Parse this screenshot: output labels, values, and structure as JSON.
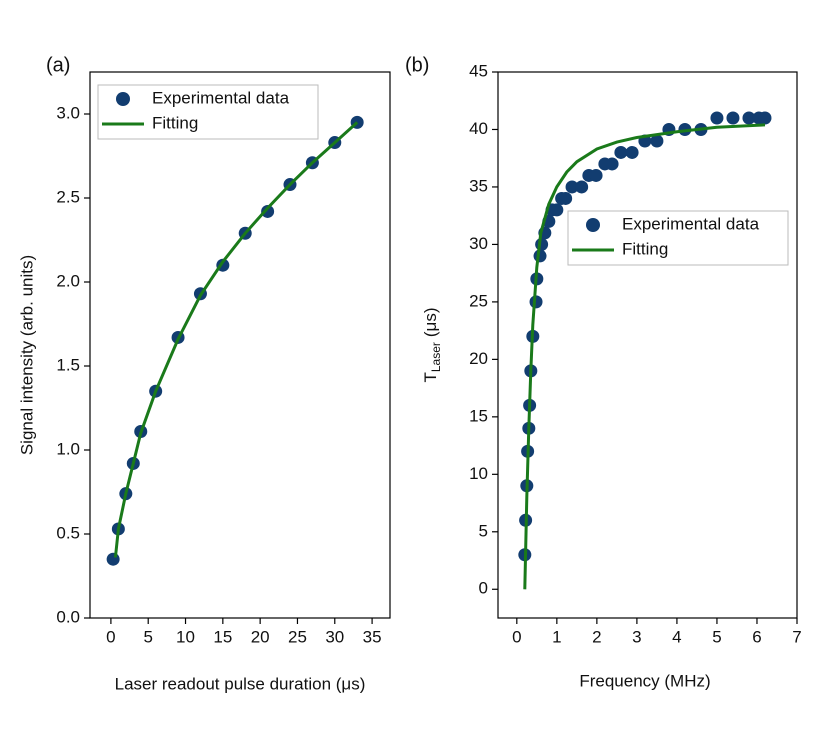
{
  "chart_data": [
    {
      "type": "scatter",
      "panel_label": "(a)",
      "xlabel": "Laser readout pulse duration (μs)",
      "ylabel": "Signal intensity (arb. units)",
      "xlim": [
        -2.8,
        37.4
      ],
      "ylim": [
        0,
        3.25
      ],
      "xticks": [
        0,
        5,
        10,
        15,
        20,
        25,
        30,
        35
      ],
      "yticks": [
        {
          "value": 0,
          "label": "0.0"
        },
        0.5,
        {
          "value": 1,
          "label": "1.0"
        },
        1.5,
        {
          "value": 2,
          "label": "2.0"
        },
        2.5,
        {
          "value": 3,
          "label": "3.0"
        }
      ],
      "legend": "upper left",
      "series": [
        {
          "name": "Experimental data",
          "color": "#123d70",
          "style": "marker",
          "x": [
            0.3,
            1,
            2,
            3,
            4,
            6,
            9,
            12,
            15,
            18,
            21,
            24,
            27,
            30,
            33
          ],
          "values": [
            0.35,
            0.53,
            0.74,
            0.92,
            1.11,
            1.35,
            1.67,
            1.93,
            2.1,
            2.29,
            2.42,
            2.58,
            2.71,
            2.83,
            2.95
          ]
        },
        {
          "name": "Fitting",
          "color": "#1a7a1a",
          "style": "line",
          "x": [
            0.6,
            1,
            2,
            3,
            4,
            6,
            9,
            12,
            15,
            18,
            21,
            24,
            27,
            30,
            33
          ],
          "values": [
            0.36,
            0.53,
            0.74,
            0.92,
            1.1,
            1.35,
            1.66,
            1.92,
            2.12,
            2.29,
            2.44,
            2.58,
            2.71,
            2.83,
            2.95
          ]
        }
      ]
    },
    {
      "type": "scatter",
      "panel_label": "(b)",
      "xlabel": "Frequency (MHz)",
      "ylabel": [
        "T",
        "Laser",
        "(μs)"
      ],
      "xlim": [
        -0.47,
        7
      ],
      "ylim": [
        -2.5,
        45
      ],
      "xticks": [
        0,
        1,
        2,
        3,
        4,
        5,
        6,
        7
      ],
      "yticks": [
        0,
        5,
        10,
        15,
        20,
        25,
        30,
        35,
        40,
        45
      ],
      "legend": "center right",
      "series": [
        {
          "name": "Experimental data",
          "color": "#123d70",
          "style": "marker",
          "x": [
            0.2,
            0.22,
            0.25,
            0.27,
            0.3,
            0.32,
            0.35,
            0.4,
            0.48,
            0.5,
            0.58,
            0.62,
            0.7,
            0.8,
            0.88,
            1.0,
            1.12,
            1.22,
            1.38,
            1.62,
            1.8,
            1.98,
            2.2,
            2.38,
            2.6,
            2.88,
            3.2,
            3.5,
            3.8,
            4.2,
            4.6,
            5.0,
            5.4,
            5.8,
            6.05,
            6.2
          ],
          "values": [
            3,
            6,
            9,
            12,
            14,
            16,
            19,
            22,
            25,
            27,
            29,
            30,
            31,
            32,
            33,
            33,
            34,
            34,
            35,
            35,
            36,
            36,
            37,
            37,
            38,
            38,
            39,
            39,
            40,
            40,
            40,
            41,
            41,
            41,
            41,
            41
          ]
        },
        {
          "name": "Fitting",
          "color": "#1a7a1a",
          "style": "line",
          "x": [
            0.2,
            0.25,
            0.3,
            0.35,
            0.4,
            0.5,
            0.6,
            0.8,
            1,
            1.25,
            1.5,
            2,
            2.5,
            3,
            4,
            5,
            6.2
          ],
          "values": [
            0,
            8,
            14,
            19,
            23,
            28,
            31,
            33.5,
            35,
            36.3,
            37.2,
            38.3,
            38.9,
            39.3,
            39.8,
            40.2,
            40.4
          ]
        }
      ]
    }
  ]
}
